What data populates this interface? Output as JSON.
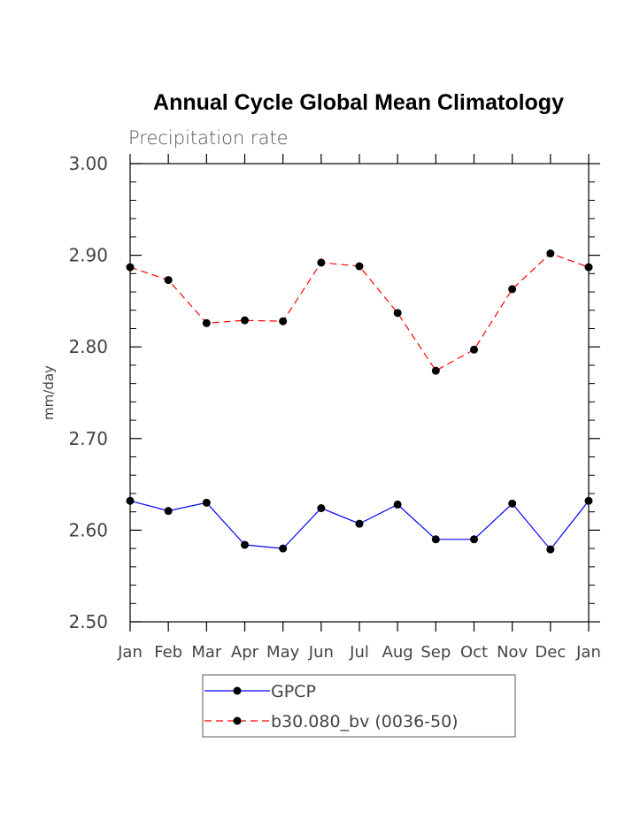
{
  "chart_data": {
    "type": "line",
    "title": "Annual Cycle Global Mean Climatology",
    "subtitle": "Precipitation rate",
    "xlabel": "",
    "ylabel": "mm/day",
    "categories": [
      "Jan",
      "Feb",
      "Mar",
      "Apr",
      "May",
      "Jun",
      "Jul",
      "Aug",
      "Sep",
      "Oct",
      "Nov",
      "Dec",
      "Jan"
    ],
    "ylim": [
      2.5,
      3.0
    ],
    "yticks": [
      "2.50",
      "2.60",
      "2.70",
      "2.80",
      "2.90",
      "3.00"
    ],
    "grid": false,
    "legend_position": "bottom-center",
    "series": [
      {
        "name": "GPCP",
        "color": "#0000ff",
        "line_style": "solid",
        "marker": "filled-circle",
        "values": [
          2.632,
          2.621,
          2.63,
          2.584,
          2.58,
          2.624,
          2.607,
          2.628,
          2.59,
          2.59,
          2.629,
          2.579,
          2.632
        ]
      },
      {
        "name": "b30.080_bv (0036-50)",
        "color": "#ff0000",
        "line_style": "dashed",
        "marker": "filled-circle",
        "values": [
          2.887,
          2.873,
          2.826,
          2.829,
          2.828,
          2.892,
          2.888,
          2.837,
          2.774,
          2.797,
          2.863,
          2.902,
          2.887
        ]
      }
    ]
  }
}
